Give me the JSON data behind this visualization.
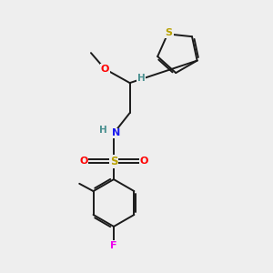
{
  "bg_color": "#eeeeee",
  "bond_color": "#1a1a1a",
  "colors": {
    "S": "#b8a000",
    "O": "#ff0000",
    "N": "#1a1aee",
    "F": "#ee00ee",
    "H": "#4a9090",
    "C": "#1a1a1a"
  },
  "lw": 1.4,
  "fsz": 7.5
}
